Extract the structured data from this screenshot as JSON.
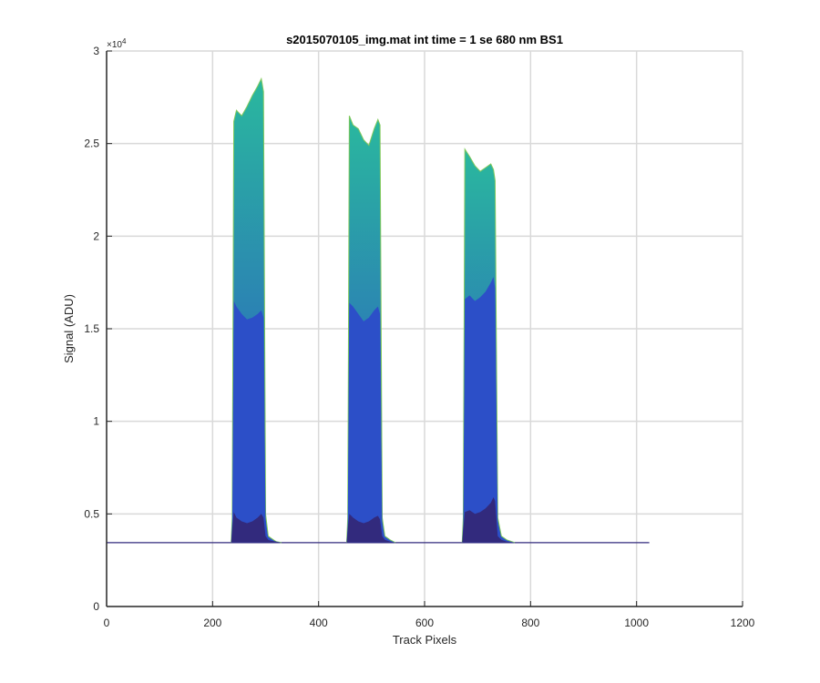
{
  "chart_data": {
    "type": "area",
    "title": "s2015070105_img.mat int time = 1 se  680 nm BS1",
    "xlabel": "Track Pixels",
    "ylabel": "Signal (ADU)",
    "xlim": [
      0,
      1200
    ],
    "ylim": [
      0,
      30000
    ],
    "x_ticks": [
      0,
      200,
      400,
      600,
      800,
      1000,
      1200
    ],
    "x_tick_labels": [
      "0",
      "200",
      "400",
      "600",
      "800",
      "1000",
      "1200"
    ],
    "y_ticks": [
      0,
      5000,
      10000,
      15000,
      20000,
      25000,
      30000
    ],
    "y_tick_labels": [
      "0",
      "0.5",
      "1",
      "1.5",
      "2",
      "2.5",
      "3"
    ],
    "y_exponent_label": "×10",
    "y_exponent_power": "4",
    "grid": true,
    "baseline": 3450,
    "x_range": [
      0,
      1024
    ],
    "colors": {
      "low": "#322a7d",
      "mid": "#2c4fc8",
      "high": "#2ab89e",
      "top": "#7ec85a"
    },
    "series": [
      {
        "x": [
          235,
          237,
          240,
          245,
          255,
          265,
          275,
          285,
          292,
          296,
          300,
          305,
          310,
          320,
          330
        ],
        "upper": [
          3450,
          4800,
          26200,
          26800,
          26500,
          27000,
          27600,
          28100,
          28500,
          27800,
          5000,
          3800,
          3700,
          3500,
          3450
        ],
        "mid_band": [
          3450,
          4600,
          16500,
          16200,
          15800,
          15500,
          15600,
          15800,
          16000,
          15600,
          4600,
          3700,
          3600,
          3500,
          3450
        ],
        "low_band": [
          3450,
          4200,
          5100,
          4800,
          4600,
          4500,
          4600,
          4800,
          5000,
          4800,
          3800,
          3600,
          3550,
          3500,
          3450
        ]
      },
      {
        "x": [
          453,
          455,
          458,
          465,
          475,
          485,
          495,
          505,
          512,
          516,
          520,
          525,
          535,
          545
        ],
        "upper": [
          3450,
          4800,
          26500,
          26000,
          25800,
          25200,
          24900,
          25800,
          26300,
          26000,
          4800,
          3800,
          3600,
          3450
        ],
        "mid_band": [
          3450,
          4500,
          16400,
          16200,
          15800,
          15400,
          15600,
          16000,
          16200,
          15800,
          4400,
          3700,
          3550,
          3450
        ],
        "low_band": [
          3450,
          4200,
          5000,
          4800,
          4600,
          4500,
          4600,
          4800,
          4900,
          4700,
          3800,
          3600,
          3500,
          3450
        ]
      },
      {
        "x": [
          671,
          673,
          676,
          685,
          695,
          705,
          715,
          725,
          730,
          733,
          738,
          745,
          755,
          770
        ],
        "upper": [
          3450,
          4800,
          24700,
          24300,
          23800,
          23500,
          23700,
          23900,
          23600,
          23000,
          4800,
          3800,
          3600,
          3450
        ],
        "mid_band": [
          3450,
          4500,
          16600,
          16800,
          16500,
          16700,
          17000,
          17500,
          17800,
          17200,
          4400,
          3700,
          3550,
          3450
        ],
        "low_band": [
          3450,
          4200,
          5100,
          5200,
          5000,
          5100,
          5300,
          5600,
          5900,
          5700,
          3800,
          3600,
          3500,
          3450
        ]
      }
    ]
  }
}
